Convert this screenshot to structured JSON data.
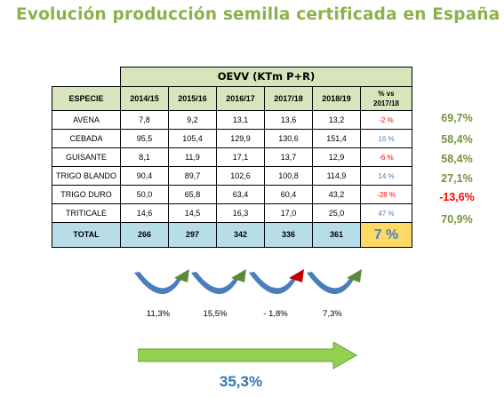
{
  "title": "Evolución producción semilla certificada en España",
  "table": {
    "main_header": "OEVV (KTm P+R)",
    "col_especie": "ESPECIE",
    "years": [
      "2014/15",
      "2015/16",
      "2016/17",
      "2017/18",
      "2018/19"
    ],
    "pct_header_line1": "% vs",
    "pct_header_line2": "2017/18",
    "rows": [
      {
        "name": "AVENA",
        "values": [
          "7,8",
          "9,2",
          "13,1",
          "13,6",
          "13,2"
        ],
        "pct": "-2 %",
        "pct_sign": "neg",
        "side": "69,7%",
        "side_sign": "pos"
      },
      {
        "name": "CEBADA",
        "values": [
          "95,5",
          "105,4",
          "129,9",
          "130,6",
          "151,4"
        ],
        "pct": "16 %",
        "pct_sign": "pos",
        "side": "58,4%",
        "side_sign": "pos"
      },
      {
        "name": "GUISANTE",
        "values": [
          "8,1",
          "11,9",
          "17,1",
          "13,7",
          "12,9"
        ],
        "pct": "-6 %",
        "pct_sign": "neg",
        "side": "58,4%",
        "side_sign": "pos"
      },
      {
        "name": "TRIGO BLANDO",
        "values": [
          "90,4",
          "89,7",
          "102,6",
          "100,8",
          "114,9"
        ],
        "pct": "14 %",
        "pct_sign": "pos",
        "side": "27,1%",
        "side_sign": "pos"
      },
      {
        "name": "TRIGO DURO",
        "values": [
          "50,0",
          "65,8",
          "63,4",
          "60,4",
          "43,2"
        ],
        "pct": "-28 %",
        "pct_sign": "neg",
        "side": "-13,6%",
        "side_sign": "neg"
      },
      {
        "name": "TRITICALE",
        "values": [
          "14,6",
          "14,5",
          "16,3",
          "17,0",
          "25,0"
        ],
        "pct": "47 %",
        "pct_sign": "pos",
        "side": "70,9%",
        "side_sign": "pos"
      }
    ],
    "total": {
      "name": "TOTAL",
      "values": [
        "266",
        "297",
        "342",
        "336",
        "361"
      ],
      "pct": "7 %"
    }
  },
  "growth": {
    "steps": [
      {
        "label": "11,3%",
        "tip": "green"
      },
      {
        "label": "15,5%",
        "tip": "green"
      },
      {
        "label": "- 1,8%",
        "tip": "red"
      },
      {
        "label": "7,3%",
        "tip": "green"
      }
    ],
    "overall": "35,3%"
  },
  "colors": {
    "title": "#8cb04a",
    "header_bg": "#d8e4bc",
    "total_bg": "#b7dde8",
    "total_pct_bg": "#ffd966",
    "positive_side": "#77933c",
    "negative": "#ff0000",
    "positive_pct": "#4f81bd",
    "arrow_body": "#4a7ebb",
    "arrow_tip_green": "#5b8a3a",
    "arrow_tip_red": "#c00000",
    "big_arrow": "#92d050"
  }
}
